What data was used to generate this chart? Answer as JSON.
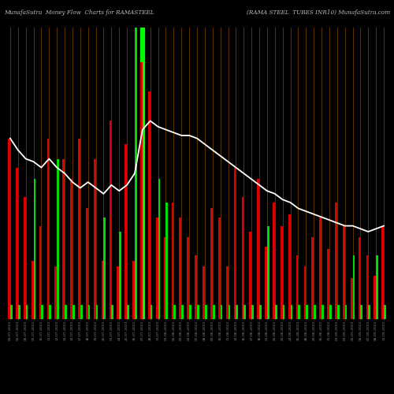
{
  "title_left": "MunafaSutra  Money Flow  Charts for RAMASTEEL",
  "title_right": "(RAMA STEEL  TUBES INR10) MunafaSutra.com",
  "bg_color": "#000000",
  "grid_color": "#5a3000",
  "line_color": "#ffffff",
  "highlight_index": 17,
  "highlight_color": "#00ff00",
  "green_color": "#00dd00",
  "red_color": "#dd0000",
  "categories": [
    "03-07-2023",
    "05-07-2023",
    "06-07-2023",
    "07-07-2023",
    "10-07-2023",
    "11-07-2023",
    "12-07-2023",
    "13-07-2023",
    "14-07-2023",
    "17-07-2023",
    "18-07-2023",
    "19-07-2023",
    "20-07-2023",
    "21-07-2023",
    "24-07-2023",
    "25-07-2023",
    "26-07-2023",
    "27-07-2023",
    "28-07-2023",
    "31-07-2023",
    "01-08-2023",
    "02-08-2023",
    "03-08-2023",
    "04-08-2023",
    "07-08-2023",
    "08-08-2023",
    "09-08-2023",
    "10-08-2023",
    "11-08-2023",
    "14-08-2023",
    "16-08-2023",
    "17-08-2023",
    "18-08-2023",
    "21-08-2023",
    "22-08-2023",
    "23-08-2023",
    "24-08-2023",
    "25-08-2023",
    "28-08-2023",
    "29-08-2023",
    "30-08-2023",
    "31-08-2023",
    "01-09-2023",
    "04-09-2023",
    "05-09-2023",
    "06-09-2023",
    "07-09-2023",
    "08-09-2023",
    "11-09-2023"
  ],
  "red_vals": [
    62,
    52,
    42,
    20,
    32,
    62,
    18,
    55,
    48,
    62,
    38,
    55,
    20,
    68,
    18,
    60,
    20,
    88,
    78,
    35,
    28,
    40,
    35,
    28,
    22,
    18,
    38,
    35,
    18,
    52,
    42,
    30,
    48,
    25,
    40,
    32,
    36,
    22,
    18,
    28,
    35,
    24,
    40,
    32,
    14,
    28,
    22,
    15,
    32
  ],
  "grn_vals": [
    5,
    5,
    5,
    48,
    5,
    5,
    55,
    5,
    5,
    5,
    5,
    5,
    35,
    5,
    30,
    5,
    100,
    5,
    5,
    48,
    40,
    5,
    5,
    5,
    5,
    5,
    5,
    5,
    5,
    5,
    5,
    5,
    5,
    32,
    5,
    5,
    5,
    5,
    5,
    5,
    5,
    5,
    5,
    5,
    22,
    5,
    5,
    22,
    5
  ],
  "line_vals": [
    62,
    58,
    55,
    54,
    52,
    55,
    52,
    50,
    47,
    45,
    47,
    45,
    43,
    46,
    44,
    46,
    50,
    65,
    68,
    66,
    65,
    64,
    63,
    63,
    62,
    60,
    58,
    56,
    54,
    52,
    50,
    48,
    46,
    44,
    43,
    41,
    40,
    38,
    37,
    36,
    35,
    34,
    33,
    32,
    32,
    31,
    30,
    31,
    32
  ]
}
